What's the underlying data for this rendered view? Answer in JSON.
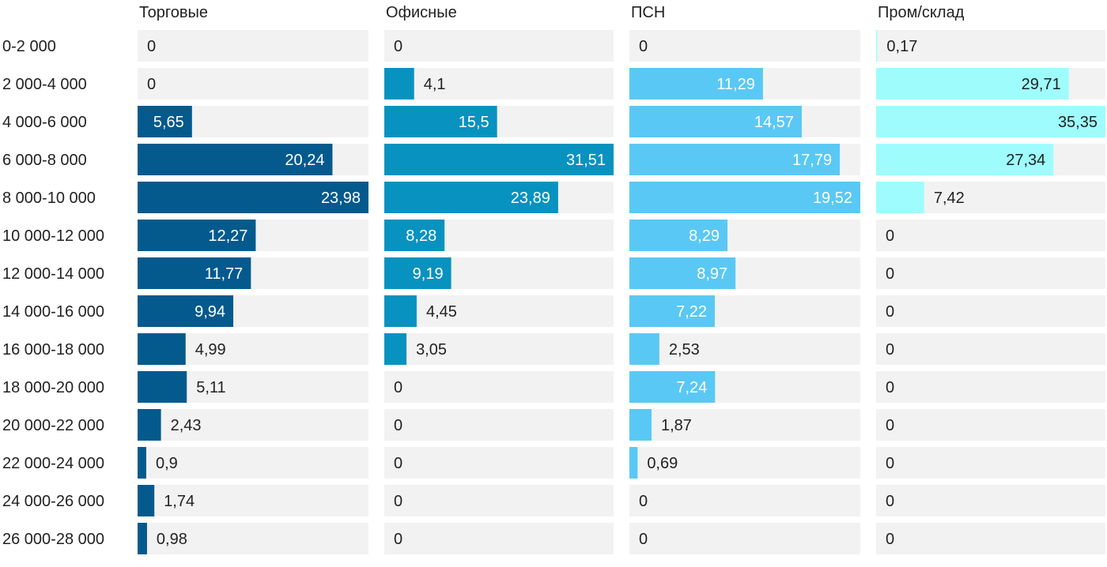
{
  "chart_data": {
    "type": "bar",
    "categories": [
      "0-2 000",
      "2 000-4 000",
      "4 000-6 000",
      "6 000-8 000",
      "8 000-10 000",
      "10 000-12 000",
      "12 000-14 000",
      "14 000-16 000",
      "16 000-18 000",
      "18 000-20 000",
      "20 000-22 000",
      "22 000-24 000",
      "24 000-26 000",
      "26 000-28 000"
    ],
    "series": [
      {
        "name": "Торговые",
        "color": "#045a8d",
        "values": [
          0,
          0,
          5.65,
          20.24,
          23.98,
          12.27,
          11.77,
          9.94,
          4.99,
          5.11,
          2.43,
          0.9,
          1.74,
          0.98
        ],
        "labels": [
          "0",
          "0",
          "5,65",
          "20,24",
          "23,98",
          "12,27",
          "11,77",
          "9,94",
          "4,99",
          "5,11",
          "2,43",
          "0,9",
          "1,74",
          "0,98"
        ]
      },
      {
        "name": "Офисные",
        "color": "#0892c0",
        "values": [
          0,
          4.1,
          15.5,
          31.51,
          23.89,
          8.28,
          9.19,
          4.45,
          3.05,
          0,
          0,
          0,
          0,
          0
        ],
        "labels": [
          "0",
          "4,1",
          "15,5",
          "31,51",
          "23,89",
          "8,28",
          "9,19",
          "4,45",
          "3,05",
          "0",
          "0",
          "0",
          "0",
          "0"
        ]
      },
      {
        "name": "ПСН",
        "color": "#5ac8f5",
        "values": [
          0,
          11.29,
          14.57,
          17.79,
          19.52,
          8.29,
          8.97,
          7.22,
          2.53,
          7.24,
          1.87,
          0.69,
          0,
          0
        ],
        "labels": [
          "0",
          "11,29",
          "14,57",
          "17,79",
          "19,52",
          "8,29",
          "8,97",
          "7,22",
          "2,53",
          "7,24",
          "1,87",
          "0,69",
          "0",
          "0"
        ]
      },
      {
        "name": "Пром/склад",
        "color": "#9ffcfd",
        "values": [
          0.17,
          29.71,
          35.35,
          27.34,
          7.42,
          0,
          0,
          0,
          0,
          0,
          0,
          0,
          0,
          0
        ],
        "labels": [
          "0,17",
          "29,71",
          "35,35",
          "27,34",
          "7,42",
          "0",
          "0",
          "0",
          "0",
          "0",
          "0",
          "0",
          "0",
          "0"
        ]
      }
    ],
    "xlims": [
      [
        0,
        23.98
      ],
      [
        0,
        31.51
      ],
      [
        0,
        19.52
      ],
      [
        0,
        35.35
      ]
    ],
    "track_color": "#f2f2f2",
    "grid": false,
    "legend": "none"
  }
}
